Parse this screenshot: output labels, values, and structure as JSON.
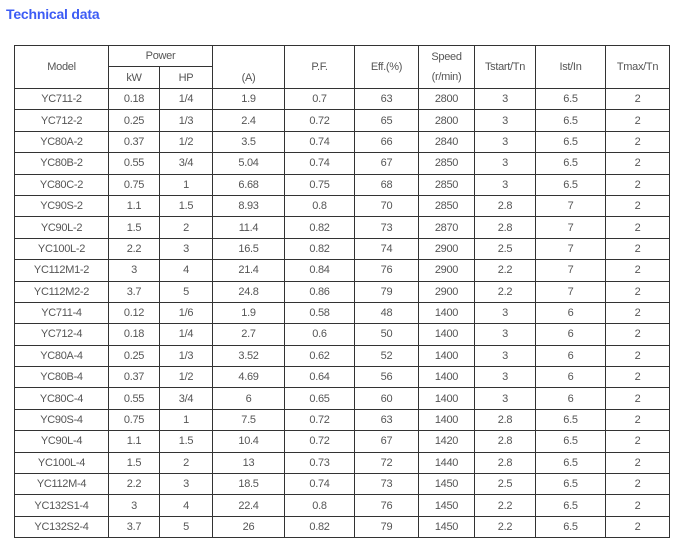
{
  "title": "Technical data",
  "headers": {
    "model": "Model",
    "power": "Power",
    "kw": "kW",
    "hp": "HP",
    "current": "(A)",
    "pf": "P.F.",
    "eff": "Eff.(%)",
    "speed": "Speed",
    "speed_unit": "(r/min)",
    "tstart": "Tstart/Tn",
    "ist": "Ist/In",
    "tmax": "Tmax/Tn"
  },
  "rows": [
    [
      "YC711-2",
      "0.18",
      "1/4",
      "1.9",
      "0.7",
      "63",
      "2800",
      "3",
      "6.5",
      "2"
    ],
    [
      "YC712-2",
      "0.25",
      "1/3",
      "2.4",
      "0.72",
      "65",
      "2800",
      "3",
      "6.5",
      "2"
    ],
    [
      "YC80A-2",
      "0.37",
      "1/2",
      "3.5",
      "0.74",
      "66",
      "2840",
      "3",
      "6.5",
      "2"
    ],
    [
      "YC80B-2",
      "0.55",
      "3/4",
      "5.04",
      "0.74",
      "67",
      "2850",
      "3",
      "6.5",
      "2"
    ],
    [
      "YC80C-2",
      "0.75",
      "1",
      "6.68",
      "0.75",
      "68",
      "2850",
      "3",
      "6.5",
      "2"
    ],
    [
      "YC90S-2",
      "1.1",
      "1.5",
      "8.93",
      "0.8",
      "70",
      "2850",
      "2.8",
      "7",
      "2"
    ],
    [
      "YC90L-2",
      "1.5",
      "2",
      "11.4",
      "0.82",
      "73",
      "2870",
      "2.8",
      "7",
      "2"
    ],
    [
      "YC100L-2",
      "2.2",
      "3",
      "16.5",
      "0.82",
      "74",
      "2900",
      "2.5",
      "7",
      "2"
    ],
    [
      "YC112M1-2",
      "3",
      "4",
      "21.4",
      "0.84",
      "76",
      "2900",
      "2.2",
      "7",
      "2"
    ],
    [
      "YC112M2-2",
      "3.7",
      "5",
      "24.8",
      "0.86",
      "79",
      "2900",
      "2.2",
      "7",
      "2"
    ],
    [
      "YC711-4",
      "0.12",
      "1/6",
      "1.9",
      "0.58",
      "48",
      "1400",
      "3",
      "6",
      "2"
    ],
    [
      "YC712-4",
      "0.18",
      "1/4",
      "2.7",
      "0.6",
      "50",
      "1400",
      "3",
      "6",
      "2"
    ],
    [
      "YC80A-4",
      "0.25",
      "1/3",
      "3.52",
      "0.62",
      "52",
      "1400",
      "3",
      "6",
      "2"
    ],
    [
      "YC80B-4",
      "0.37",
      "1/2",
      "4.69",
      "0.64",
      "56",
      "1400",
      "3",
      "6",
      "2"
    ],
    [
      "YC80C-4",
      "0.55",
      "3/4",
      "6",
      "0.65",
      "60",
      "1400",
      "3",
      "6",
      "2"
    ],
    [
      "YC90S-4",
      "0.75",
      "1",
      "7.5",
      "0.72",
      "63",
      "1400",
      "2.8",
      "6.5",
      "2"
    ],
    [
      "YC90L-4",
      "1.1",
      "1.5",
      "10.4",
      "0.72",
      "67",
      "1420",
      "2.8",
      "6.5",
      "2"
    ],
    [
      "YC100L-4",
      "1.5",
      "2",
      "13",
      "0.73",
      "72",
      "1440",
      "2.8",
      "6.5",
      "2"
    ],
    [
      "YC112M-4",
      "2.2",
      "3",
      "18.5",
      "0.74",
      "73",
      "1450",
      "2.5",
      "6.5",
      "2"
    ],
    [
      "YC132S1-4",
      "3",
      "4",
      "22.4",
      "0.8",
      "76",
      "1450",
      "2.2",
      "6.5",
      "2"
    ],
    [
      "YC132S2-4",
      "3.7",
      "5",
      "26",
      "0.82",
      "79",
      "1450",
      "2.2",
      "6.5",
      "2"
    ]
  ]
}
